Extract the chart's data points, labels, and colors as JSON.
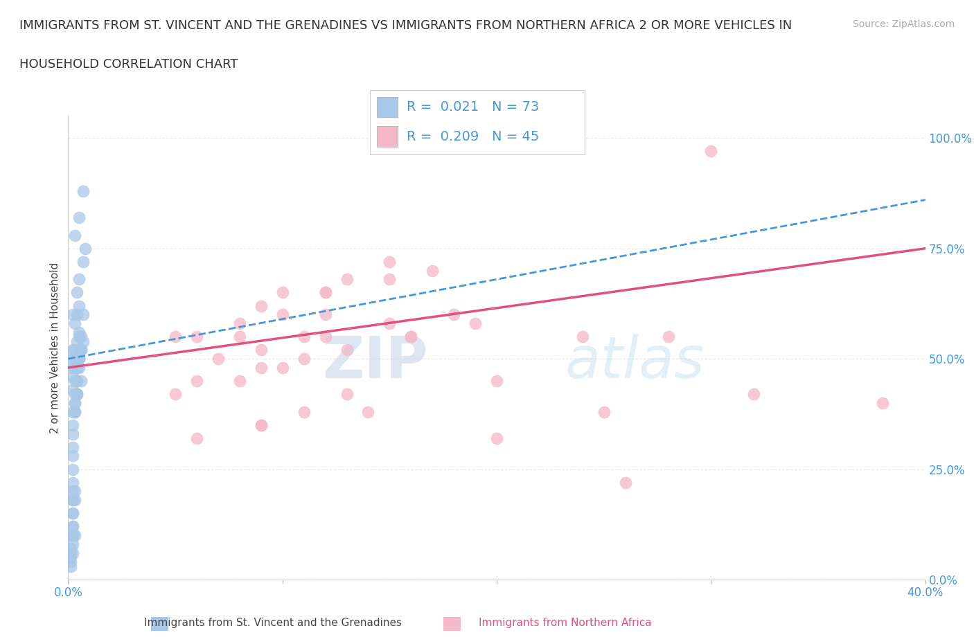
{
  "title_line1": "IMMIGRANTS FROM ST. VINCENT AND THE GRENADINES VS IMMIGRANTS FROM NORTHERN AFRICA 2 OR MORE VEHICLES IN",
  "title_line2": "HOUSEHOLD CORRELATION CHART",
  "source_text": "Source: ZipAtlas.com",
  "xlabel_blue": "Immigrants from St. Vincent and the Grenadines",
  "xlabel_pink": "Immigrants from Northern Africa",
  "ylabel": "2 or more Vehicles in Household",
  "blue_R": 0.021,
  "blue_N": 73,
  "pink_R": 0.209,
  "pink_N": 45,
  "blue_color": "#a8c8e8",
  "pink_color": "#f4b8c8",
  "blue_line_color": "#4499dd",
  "pink_line_color": "#e05080",
  "legend_text_color": "#4499dd",
  "xmin": 0.0,
  "xmax": 0.4,
  "ymin": 0.0,
  "ymax": 1.05,
  "ytick_vals": [
    0.0,
    0.25,
    0.5,
    0.75,
    1.0
  ],
  "ytick_labels": [
    "0.0%",
    "25.0%",
    "50.0%",
    "75.0%",
    "100.0%"
  ],
  "xtick_vals": [
    0.0,
    0.1,
    0.2,
    0.3,
    0.4
  ],
  "xtick_labels": [
    "0.0%",
    "",
    "",
    "",
    "40.0%"
  ],
  "blue_scatter_x": [
    0.005,
    0.003,
    0.002,
    0.004,
    0.006,
    0.003,
    0.005,
    0.004,
    0.007,
    0.002,
    0.003,
    0.004,
    0.005,
    0.006,
    0.003,
    0.005,
    0.007,
    0.008,
    0.004,
    0.003,
    0.002,
    0.003,
    0.004,
    0.005,
    0.006,
    0.004,
    0.003,
    0.002,
    0.003,
    0.004,
    0.005,
    0.007,
    0.004,
    0.003,
    0.002,
    0.002,
    0.003,
    0.005,
    0.006,
    0.004,
    0.002,
    0.002,
    0.002,
    0.003,
    0.003,
    0.004,
    0.005,
    0.005,
    0.006,
    0.007,
    0.002,
    0.002,
    0.002,
    0.003,
    0.003,
    0.002,
    0.002,
    0.002,
    0.003,
    0.002,
    0.002,
    0.002,
    0.002,
    0.002,
    0.002,
    0.002,
    0.002,
    0.002,
    0.001,
    0.001,
    0.001,
    0.001,
    0.001
  ],
  "blue_scatter_y": [
    0.82,
    0.78,
    0.6,
    0.65,
    0.55,
    0.58,
    0.62,
    0.6,
    0.88,
    0.52,
    0.5,
    0.48,
    0.5,
    0.52,
    0.48,
    0.68,
    0.72,
    0.75,
    0.48,
    0.45,
    0.43,
    0.42,
    0.45,
    0.48,
    0.45,
    0.42,
    0.4,
    0.38,
    0.4,
    0.42,
    0.55,
    0.6,
    0.42,
    0.38,
    0.35,
    0.33,
    0.38,
    0.5,
    0.52,
    0.45,
    0.48,
    0.46,
    0.5,
    0.48,
    0.52,
    0.54,
    0.56,
    0.5,
    0.52,
    0.54,
    0.2,
    0.18,
    0.15,
    0.18,
    0.2,
    0.12,
    0.1,
    0.08,
    0.1,
    0.3,
    0.28,
    0.25,
    0.22,
    0.18,
    0.15,
    0.12,
    0.1,
    0.06,
    0.05,
    0.04,
    0.06,
    0.07,
    0.03
  ],
  "pink_scatter_x": [
    0.05,
    0.1,
    0.13,
    0.15,
    0.17,
    0.09,
    0.12,
    0.15,
    0.3,
    0.08,
    0.12,
    0.05,
    0.08,
    0.1,
    0.12,
    0.15,
    0.18,
    0.06,
    0.08,
    0.1,
    0.12,
    0.07,
    0.09,
    0.11,
    0.06,
    0.09,
    0.11,
    0.13,
    0.16,
    0.19,
    0.24,
    0.28,
    0.16,
    0.2,
    0.25,
    0.32,
    0.09,
    0.11,
    0.13,
    0.06,
    0.09,
    0.14,
    0.2,
    0.38,
    0.26
  ],
  "pink_scatter_y": [
    0.55,
    0.65,
    0.68,
    0.72,
    0.7,
    0.62,
    0.65,
    0.68,
    0.97,
    0.55,
    0.6,
    0.42,
    0.45,
    0.48,
    0.55,
    0.58,
    0.6,
    0.55,
    0.58,
    0.6,
    0.65,
    0.5,
    0.52,
    0.55,
    0.45,
    0.48,
    0.5,
    0.52,
    0.55,
    0.58,
    0.55,
    0.55,
    0.55,
    0.45,
    0.38,
    0.42,
    0.35,
    0.38,
    0.42,
    0.32,
    0.35,
    0.38,
    0.32,
    0.4,
    0.22
  ],
  "blue_trendline_x0": 0.0,
  "blue_trendline_y0": 0.5,
  "blue_trendline_x1": 0.4,
  "blue_trendline_y1": 0.86,
  "pink_trendline_x0": 0.0,
  "pink_trendline_y0": 0.48,
  "pink_trendline_x1": 0.4,
  "pink_trendline_y1": 0.75,
  "watermark_zip": "ZIP",
  "watermark_atlas": "atlas",
  "watermark_color": "#d8e8f5",
  "background_color": "#ffffff",
  "grid_color": "#e8e8e8",
  "title_fontsize": 13,
  "axis_label_fontsize": 11,
  "tick_fontsize": 12,
  "legend_fontsize": 14
}
